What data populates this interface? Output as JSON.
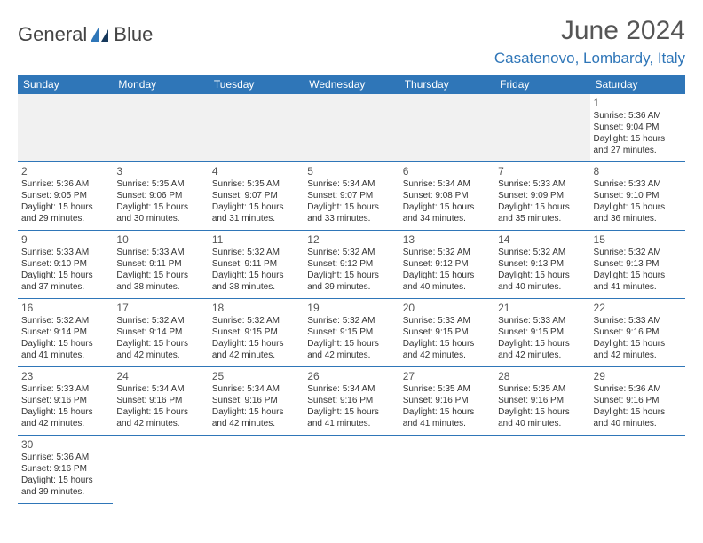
{
  "logo": {
    "text1": "General",
    "text2": "Blue"
  },
  "title": "June 2024",
  "location": "Casatenovo, Lombardy, Italy",
  "colors": {
    "accent": "#2f76b8",
    "text": "#333333",
    "header_bg": "#2f76b8"
  },
  "weekdays": [
    "Sunday",
    "Monday",
    "Tuesday",
    "Wednesday",
    "Thursday",
    "Friday",
    "Saturday"
  ],
  "days": {
    "1": {
      "sunrise": "5:36 AM",
      "sunset": "9:04 PM",
      "daylight": "15 hours and 27 minutes."
    },
    "2": {
      "sunrise": "5:36 AM",
      "sunset": "9:05 PM",
      "daylight": "15 hours and 29 minutes."
    },
    "3": {
      "sunrise": "5:35 AM",
      "sunset": "9:06 PM",
      "daylight": "15 hours and 30 minutes."
    },
    "4": {
      "sunrise": "5:35 AM",
      "sunset": "9:07 PM",
      "daylight": "15 hours and 31 minutes."
    },
    "5": {
      "sunrise": "5:34 AM",
      "sunset": "9:07 PM",
      "daylight": "15 hours and 33 minutes."
    },
    "6": {
      "sunrise": "5:34 AM",
      "sunset": "9:08 PM",
      "daylight": "15 hours and 34 minutes."
    },
    "7": {
      "sunrise": "5:33 AM",
      "sunset": "9:09 PM",
      "daylight": "15 hours and 35 minutes."
    },
    "8": {
      "sunrise": "5:33 AM",
      "sunset": "9:10 PM",
      "daylight": "15 hours and 36 minutes."
    },
    "9": {
      "sunrise": "5:33 AM",
      "sunset": "9:10 PM",
      "daylight": "15 hours and 37 minutes."
    },
    "10": {
      "sunrise": "5:33 AM",
      "sunset": "9:11 PM",
      "daylight": "15 hours and 38 minutes."
    },
    "11": {
      "sunrise": "5:32 AM",
      "sunset": "9:11 PM",
      "daylight": "15 hours and 38 minutes."
    },
    "12": {
      "sunrise": "5:32 AM",
      "sunset": "9:12 PM",
      "daylight": "15 hours and 39 minutes."
    },
    "13": {
      "sunrise": "5:32 AM",
      "sunset": "9:12 PM",
      "daylight": "15 hours and 40 minutes."
    },
    "14": {
      "sunrise": "5:32 AM",
      "sunset": "9:13 PM",
      "daylight": "15 hours and 40 minutes."
    },
    "15": {
      "sunrise": "5:32 AM",
      "sunset": "9:13 PM",
      "daylight": "15 hours and 41 minutes."
    },
    "16": {
      "sunrise": "5:32 AM",
      "sunset": "9:14 PM",
      "daylight": "15 hours and 41 minutes."
    },
    "17": {
      "sunrise": "5:32 AM",
      "sunset": "9:14 PM",
      "daylight": "15 hours and 42 minutes."
    },
    "18": {
      "sunrise": "5:32 AM",
      "sunset": "9:15 PM",
      "daylight": "15 hours and 42 minutes."
    },
    "19": {
      "sunrise": "5:32 AM",
      "sunset": "9:15 PM",
      "daylight": "15 hours and 42 minutes."
    },
    "20": {
      "sunrise": "5:33 AM",
      "sunset": "9:15 PM",
      "daylight": "15 hours and 42 minutes."
    },
    "21": {
      "sunrise": "5:33 AM",
      "sunset": "9:15 PM",
      "daylight": "15 hours and 42 minutes."
    },
    "22": {
      "sunrise": "5:33 AM",
      "sunset": "9:16 PM",
      "daylight": "15 hours and 42 minutes."
    },
    "23": {
      "sunrise": "5:33 AM",
      "sunset": "9:16 PM",
      "daylight": "15 hours and 42 minutes."
    },
    "24": {
      "sunrise": "5:34 AM",
      "sunset": "9:16 PM",
      "daylight": "15 hours and 42 minutes."
    },
    "25": {
      "sunrise": "5:34 AM",
      "sunset": "9:16 PM",
      "daylight": "15 hours and 42 minutes."
    },
    "26": {
      "sunrise": "5:34 AM",
      "sunset": "9:16 PM",
      "daylight": "15 hours and 41 minutes."
    },
    "27": {
      "sunrise": "5:35 AM",
      "sunset": "9:16 PM",
      "daylight": "15 hours and 41 minutes."
    },
    "28": {
      "sunrise": "5:35 AM",
      "sunset": "9:16 PM",
      "daylight": "15 hours and 40 minutes."
    },
    "29": {
      "sunrise": "5:36 AM",
      "sunset": "9:16 PM",
      "daylight": "15 hours and 40 minutes."
    },
    "30": {
      "sunrise": "5:36 AM",
      "sunset": "9:16 PM",
      "daylight": "15 hours and 39 minutes."
    }
  },
  "labels": {
    "sunrise": "Sunrise:",
    "sunset": "Sunset:",
    "daylight": "Daylight:"
  },
  "layout": {
    "first_day_column": 6,
    "num_days": 30
  }
}
